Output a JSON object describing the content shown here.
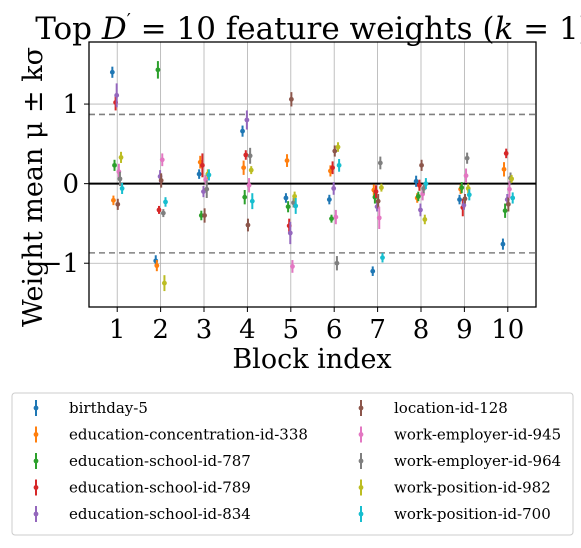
{
  "chart_data": {
    "type": "scatter",
    "title": "Top D' = 10 feature weights (k = 1)",
    "title_parts": {
      "lead": "Top ",
      "D": "D",
      "prime": "′",
      "rest": " = 10 feature weights (",
      "k": "k",
      "close": " = 1)"
    },
    "xlabel": "Block index",
    "ylabel": "Weight mean μ ± kσ",
    "xlim": [
      0.35,
      10.65
    ],
    "ylim": [
      -1.55,
      1.78
    ],
    "xticks": [
      1,
      2,
      3,
      4,
      5,
      6,
      7,
      8,
      9,
      10
    ],
    "yticks": [
      1,
      0,
      -1
    ],
    "ytick_labels": [
      "1",
      "0",
      "−1"
    ],
    "grid": true,
    "zero_line": 0,
    "threshold_lines": [
      0.87,
      -0.87
    ],
    "legend_position": "bottom",
    "series": [
      {
        "name": "birthday-5",
        "color": "#1f77b4",
        "offset": -0.112,
        "values": [
          1.4,
          -0.97,
          0.12,
          0.66,
          -0.18,
          -0.2,
          -1.1,
          0.03,
          -0.2,
          -0.76
        ],
        "errors": [
          0.07,
          0.07,
          0.06,
          0.07,
          0.06,
          0.06,
          0.06,
          0.07,
          0.06,
          0.07
        ]
      },
      {
        "name": "education-concentration-id-338",
        "color": "#ff7f0e",
        "offset": -0.087,
        "values": [
          -0.21,
          -1.03,
          0.27,
          0.2,
          0.29,
          0.16,
          -0.08,
          -0.18,
          -0.07,
          0.18
        ],
        "errors": [
          0.06,
          0.07,
          0.08,
          0.09,
          0.08,
          0.07,
          0.07,
          0.06,
          0.06,
          0.09
        ]
      },
      {
        "name": "education-school-id-787",
        "color": "#2ca02c",
        "offset": -0.062,
        "values": [
          0.23,
          1.43,
          -0.4,
          -0.17,
          -0.29,
          -0.44,
          -0.17,
          -0.16,
          -0.05,
          -0.34
        ],
        "errors": [
          0.07,
          0.11,
          0.06,
          0.09,
          0.07,
          0.05,
          0.08,
          0.06,
          0.07,
          0.09
        ]
      },
      {
        "name": "education-school-id-789",
        "color": "#d62728",
        "offset": -0.037,
        "values": [
          1.02,
          -0.33,
          0.23,
          0.36,
          -0.53,
          0.2,
          -0.1,
          -0.02,
          -0.3,
          0.38
        ],
        "errors": [
          0.1,
          0.05,
          0.15,
          0.06,
          0.09,
          0.08,
          0.08,
          0.07,
          0.11,
          0.06
        ]
      },
      {
        "name": "education-school-id-834",
        "color": "#9467bd",
        "offset": -0.012,
        "values": [
          1.11,
          0.09,
          -0.1,
          0.8,
          -0.62,
          -0.06,
          -0.29,
          -0.33,
          -0.27,
          -0.2
        ],
        "errors": [
          0.15,
          0.08,
          0.07,
          0.12,
          0.14,
          0.08,
          0.06,
          0.08,
          0.06,
          0.07
        ]
      },
      {
        "name": "location-id-128",
        "color": "#8c564b",
        "offset": 0.013,
        "values": [
          -0.26,
          0.04,
          -0.4,
          -0.52,
          1.06,
          0.41,
          -0.22,
          0.23,
          -0.19,
          -0.26
        ],
        "errors": [
          0.07,
          0.09,
          0.09,
          0.08,
          0.09,
          0.07,
          0.09,
          0.07,
          0.06,
          0.09
        ]
      },
      {
        "name": "work-employer-id-945",
        "color": "#e377c2",
        "offset": 0.038,
        "values": [
          0.15,
          0.3,
          0.05,
          -0.02,
          -1.04,
          -0.42,
          -0.43,
          -0.13,
          0.1,
          -0.07
        ],
        "errors": [
          0.1,
          0.08,
          0.06,
          0.09,
          0.08,
          0.09,
          0.14,
          0.08,
          0.09,
          0.11
        ]
      },
      {
        "name": "work-employer-id-964",
        "color": "#7f7f7f",
        "offset": 0.063,
        "values": [
          0.06,
          -0.37,
          -0.07,
          0.35,
          -0.24,
          -1.0,
          0.26,
          -0.06,
          0.32,
          0.07
        ],
        "errors": [
          0.09,
          0.05,
          0.11,
          0.1,
          0.06,
          0.09,
          0.08,
          0.06,
          0.07,
          0.07
        ]
      },
      {
        "name": "work-position-id-982",
        "color": "#bcbd22",
        "offset": 0.088,
        "values": [
          0.33,
          -1.25,
          0.12,
          0.17,
          -0.16,
          0.46,
          -0.05,
          -0.45,
          -0.06,
          0.06
        ],
        "errors": [
          0.07,
          0.1,
          0.06,
          0.05,
          0.06,
          0.06,
          0.05,
          0.06,
          0.06,
          0.05
        ]
      },
      {
        "name": "work-position-id-700",
        "color": "#17becf",
        "offset": 0.113,
        "values": [
          -0.06,
          -0.23,
          0.11,
          -0.22,
          -0.28,
          0.23,
          -0.93,
          0.0,
          -0.14,
          -0.18
        ],
        "errors": [
          0.07,
          0.06,
          0.07,
          0.1,
          0.1,
          0.08,
          0.06,
          0.07,
          0.07,
          0.07
        ]
      }
    ]
  }
}
